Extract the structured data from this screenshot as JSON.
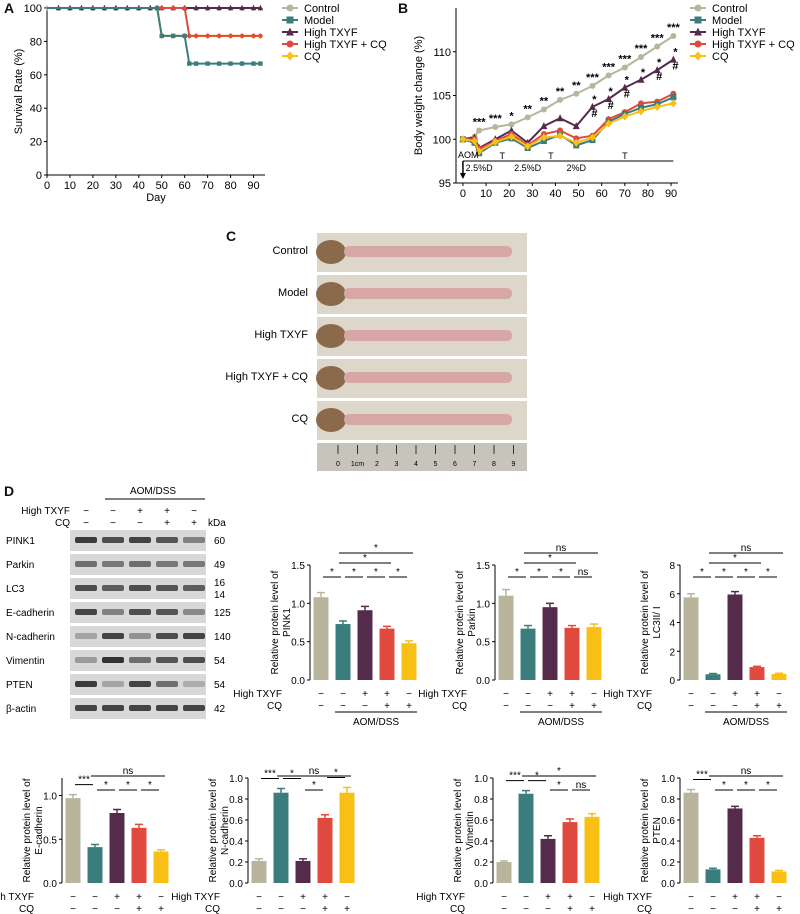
{
  "colors": {
    "control": "#b8b59c",
    "model": "#3b7d7c",
    "high_txyf": "#552b4b",
    "high_txyf_cq": "#e0493d",
    "cq": "#f8bf14",
    "blot_bg": "#d8d8d8",
    "band": "#2a2a2a"
  },
  "series_names": [
    "Control",
    "Model",
    "High TXYF",
    "High TXYF + CQ",
    "CQ"
  ],
  "panel_labels": {
    "a": "A",
    "b": "B",
    "c": "C",
    "d": "D"
  },
  "chart_data": [
    {
      "id": "A",
      "type": "line",
      "title": "",
      "xlabel": "Day",
      "ylabel": "Survival Rate (%)",
      "xlim": [
        0,
        95
      ],
      "ylim": [
        0,
        100
      ],
      "xticks": [
        0,
        10,
        20,
        30,
        40,
        50,
        60,
        70,
        80,
        90
      ],
      "yticks": [
        0,
        20,
        40,
        60,
        80,
        100
      ],
      "series": [
        {
          "name": "Control",
          "x": [
            0,
            5,
            10,
            15,
            20,
            25,
            30,
            35,
            40,
            45,
            48,
            50,
            55,
            60,
            65,
            70,
            75,
            80,
            85,
            90,
            93
          ],
          "y": [
            100,
            100,
            100,
            100,
            100,
            100,
            100,
            100,
            100,
            100,
            100,
            100,
            100,
            100,
            100,
            100,
            100,
            100,
            100,
            100,
            100
          ]
        },
        {
          "name": "High TXYF",
          "x": [
            0,
            5,
            10,
            15,
            20,
            25,
            30,
            35,
            40,
            45,
            48,
            50,
            55,
            60,
            65,
            70,
            75,
            80,
            85,
            90,
            93
          ],
          "y": [
            100,
            100,
            100,
            100,
            100,
            100,
            100,
            100,
            100,
            100,
            100,
            100,
            100,
            100,
            100,
            100,
            100,
            100,
            100,
            100,
            100
          ]
        },
        {
          "name": "CQ",
          "x": [
            0,
            48,
            50,
            55,
            60,
            62,
            65,
            70,
            75,
            80,
            85,
            90,
            93
          ],
          "y": [
            100,
            100,
            83.3,
            83.3,
            83.3,
            83.3,
            83.3,
            83.3,
            83.3,
            83.3,
            83.3,
            83.3,
            83.3
          ]
        },
        {
          "name": "High TXYF + CQ",
          "x": [
            0,
            48,
            50,
            55,
            60,
            62,
            65,
            70,
            75,
            80,
            85,
            90,
            93
          ],
          "y": [
            100,
            100,
            100,
            100,
            100,
            83.3,
            83.3,
            83.3,
            83.3,
            83.3,
            83.3,
            83.3,
            83.3
          ]
        },
        {
          "name": "Model",
          "x": [
            0,
            48,
            50,
            55,
            60,
            62,
            65,
            70,
            75,
            80,
            85,
            90,
            93
          ],
          "y": [
            100,
            100,
            83.3,
            83.3,
            83.3,
            66.7,
            66.7,
            66.7,
            66.7,
            66.7,
            66.7,
            66.7,
            66.7
          ]
        }
      ]
    },
    {
      "id": "B",
      "type": "line",
      "title": "",
      "xlabel": "",
      "ylabel": "Body weight change (%)",
      "xlim": [
        -3,
        93
      ],
      "ylim": [
        95,
        115
      ],
      "xticks": [
        0,
        10,
        20,
        30,
        40,
        50,
        60,
        70,
        80,
        90
      ],
      "yticks": [
        95,
        100,
        105,
        110
      ],
      "x": [
        0,
        5,
        7,
        14,
        21,
        28,
        35,
        42,
        49,
        56,
        63,
        70,
        77,
        84,
        91
      ],
      "series": [
        {
          "name": "Control",
          "y": [
            100,
            100.3,
            101,
            101.4,
            101.7,
            102.5,
            103.4,
            104.5,
            105.2,
            106.1,
            107.3,
            108.2,
            109.4,
            110.6,
            111.8
          ]
        },
        {
          "name": "High TXYF",
          "y": [
            100,
            100.2,
            99,
            100,
            101,
            99.6,
            101.5,
            102.4,
            101.5,
            103.7,
            104.6,
            105.9,
            106.8,
            107.9,
            109.1
          ]
        },
        {
          "name": "High TXYF + CQ",
          "y": [
            100,
            100,
            98.9,
            99.8,
            100.6,
            99.3,
            100.6,
            101,
            100.1,
            100.4,
            102.3,
            103.1,
            104.1,
            104.3,
            105.2
          ]
        },
        {
          "name": "Model",
          "y": [
            100,
            99.6,
            98.4,
            99.6,
            100.1,
            99,
            99.8,
            100.5,
            99.3,
            99.9,
            102,
            102.9,
            103.6,
            104,
            104.8
          ]
        },
        {
          "name": "CQ",
          "y": [
            100,
            99.8,
            98.6,
            99.7,
            100.3,
            99.2,
            100.2,
            100.4,
            99.6,
            100.2,
            101.8,
            102.6,
            103.2,
            103.7,
            104.1
          ]
        }
      ],
      "annotations": [
        {
          "x": 7,
          "text": "***"
        },
        {
          "x": 14,
          "text": "***"
        },
        {
          "x": 21,
          "text": "*"
        },
        {
          "x": 28,
          "text": "**"
        },
        {
          "x": 35,
          "text": "**"
        },
        {
          "x": 42,
          "text": "**"
        },
        {
          "x": 49,
          "text": "**"
        },
        {
          "x": 56,
          "text": "***"
        },
        {
          "x": 63,
          "text": "***"
        },
        {
          "x": 70,
          "text": "***"
        },
        {
          "x": 77,
          "text": "***"
        },
        {
          "x": 84,
          "text": "***"
        },
        {
          "x": 91,
          "text": "***"
        }
      ],
      "hash_annotations": [
        {
          "x": 56,
          "text": "*"
        },
        {
          "x": 63,
          "text": "*"
        },
        {
          "x": 70,
          "text": "*"
        },
        {
          "x": 77,
          "text": "*"
        },
        {
          "x": 84,
          "text": "*"
        },
        {
          "x": 91,
          "text": "*"
        },
        {
          "x": 56,
          "text": "#"
        },
        {
          "x": 63,
          "text": "#"
        },
        {
          "x": 70,
          "text": "#"
        },
        {
          "x": 84,
          "text": "#"
        },
        {
          "x": 91,
          "text": "#"
        }
      ],
      "treatment": {
        "aom": "AOM",
        "labels": [
          {
            "x": 7,
            "text": "2.5%D"
          },
          {
            "x": 28,
            "text": "2.5%D"
          },
          {
            "x": 49,
            "text": "2%D"
          }
        ],
        "t_labels": [
          {
            "x": 17,
            "text": "T"
          },
          {
            "x": 38,
            "text": "T"
          },
          {
            "x": 70,
            "text": "T"
          }
        ]
      }
    },
    {
      "id": "D1",
      "type": "bar",
      "ylabel": "Relative protein level of\nPINK1",
      "ylim": [
        0,
        1.5
      ],
      "yticks": [
        0,
        0.5,
        1.0,
        1.5
      ],
      "categories": [
        "Control",
        "Model",
        "High TXYF",
        "High TXYF + CQ",
        "CQ"
      ],
      "values": [
        1.08,
        0.73,
        0.91,
        0.67,
        0.48
      ],
      "errors": [
        0.06,
        0.04,
        0.05,
        0.03,
        0.03
      ],
      "sig": [
        {
          "a": 0,
          "b": 1,
          "t": "*"
        },
        {
          "a": 1,
          "b": 2,
          "t": "*"
        },
        {
          "a": 2,
          "b": 3,
          "t": "*"
        },
        {
          "a": 3,
          "b": 4,
          "t": "*"
        },
        {
          "a": 1,
          "b": 3,
          "t": "*"
        },
        {
          "a": 1,
          "b": 4,
          "t": "*"
        }
      ]
    },
    {
      "id": "D2",
      "type": "bar",
      "ylabel": "Relative protein level of\nParkin",
      "ylim": [
        0,
        1.5
      ],
      "yticks": [
        0,
        0.5,
        1.0,
        1.5
      ],
      "categories": [
        "Control",
        "Model",
        "High TXYF",
        "High TXYF + CQ",
        "CQ"
      ],
      "values": [
        1.1,
        0.67,
        0.95,
        0.68,
        0.69
      ],
      "errors": [
        0.08,
        0.04,
        0.05,
        0.03,
        0.04
      ],
      "sig": [
        {
          "a": 0,
          "b": 1,
          "t": "*"
        },
        {
          "a": 1,
          "b": 2,
          "t": "*"
        },
        {
          "a": 2,
          "b": 3,
          "t": "*"
        },
        {
          "a": 3,
          "b": 4,
          "t": "ns"
        },
        {
          "a": 1,
          "b": 3,
          "t": "*"
        },
        {
          "a": 1,
          "b": 4,
          "t": "ns"
        }
      ]
    },
    {
      "id": "D3",
      "type": "bar",
      "ylabel": "Relative protein level of\nLC3II/ I",
      "ylim": [
        0,
        8
      ],
      "yticks": [
        0,
        2,
        4,
        6,
        8
      ],
      "categories": [
        "Control",
        "Model",
        "High TXYF",
        "High TXYF + CQ",
        "CQ"
      ],
      "values": [
        5.75,
        0.4,
        5.95,
        0.9,
        0.42
      ],
      "errors": [
        0.25,
        0.05,
        0.2,
        0.05,
        0.05
      ],
      "sig": [
        {
          "a": 0,
          "b": 1,
          "t": "*"
        },
        {
          "a": 1,
          "b": 2,
          "t": "*"
        },
        {
          "a": 2,
          "b": 3,
          "t": "*"
        },
        {
          "a": 3,
          "b": 4,
          "t": "*"
        },
        {
          "a": 1,
          "b": 3,
          "t": "*"
        },
        {
          "a": 1,
          "b": 4,
          "t": "ns"
        }
      ]
    },
    {
      "id": "D4",
      "type": "bar",
      "ylabel": "Relative protein level of\nE-cadherin",
      "ylim": [
        0,
        1.2
      ],
      "yticks": [
        0,
        0.5,
        1.0
      ],
      "categories": [
        "Control",
        "Model",
        "High TXYF",
        "High TXYF + CQ",
        "CQ"
      ],
      "values": [
        0.97,
        0.41,
        0.8,
        0.63,
        0.36
      ],
      "errors": [
        0.04,
        0.03,
        0.04,
        0.04,
        0.02
      ],
      "sig": [
        {
          "a": 0,
          "b": 1,
          "t": "***"
        },
        {
          "a": 1,
          "b": 2,
          "t": "*"
        },
        {
          "a": 2,
          "b": 3,
          "t": "*"
        },
        {
          "a": 3,
          "b": 4,
          "t": "*"
        },
        {
          "a": 1,
          "b": 4,
          "t": "ns"
        }
      ]
    },
    {
      "id": "D5",
      "type": "bar",
      "ylabel": "Relative protein level of\nN-cadherin",
      "ylim": [
        0,
        1.0
      ],
      "yticks": [
        0,
        0.2,
        0.4,
        0.6,
        0.8,
        1.0
      ],
      "categories": [
        "Control",
        "Model",
        "High TXYF",
        "High TXYF + CQ",
        "CQ"
      ],
      "values": [
        0.21,
        0.86,
        0.21,
        0.62,
        0.86
      ],
      "errors": [
        0.02,
        0.04,
        0.02,
        0.03,
        0.05
      ],
      "sig": [
        {
          "a": 0,
          "b": 1,
          "t": "***"
        },
        {
          "a": 1,
          "b": 2,
          "t": "*"
        },
        {
          "a": 2,
          "b": 3,
          "t": "*"
        },
        {
          "a": 3,
          "b": 4,
          "t": "*"
        },
        {
          "a": 1,
          "b": 4,
          "t": "ns"
        }
      ]
    },
    {
      "id": "D6",
      "type": "bar",
      "ylabel": "Relative protein level of\nVimentin",
      "ylim": [
        0,
        1.0
      ],
      "yticks": [
        0,
        0.2,
        0.4,
        0.6,
        0.8,
        1.0
      ],
      "categories": [
        "Control",
        "Model",
        "High TXYF",
        "High TXYF + CQ",
        "CQ"
      ],
      "values": [
        0.2,
        0.85,
        0.42,
        0.58,
        0.63
      ],
      "errors": [
        0.01,
        0.03,
        0.03,
        0.03,
        0.03
      ],
      "sig": [
        {
          "a": 0,
          "b": 1,
          "t": "***"
        },
        {
          "a": 1,
          "b": 2,
          "t": "*"
        },
        {
          "a": 2,
          "b": 3,
          "t": "*"
        },
        {
          "a": 3,
          "b": 4,
          "t": "ns"
        },
        {
          "a": 1,
          "b": 4,
          "t": "*"
        }
      ]
    },
    {
      "id": "D7",
      "type": "bar",
      "ylabel": "Relative protein level of\nPTEN",
      "ylim": [
        0,
        1.0
      ],
      "yticks": [
        0,
        0.2,
        0.4,
        0.6,
        0.8,
        1.0
      ],
      "categories": [
        "Control",
        "Model",
        "High TXYF",
        "High TXYF + CQ",
        "CQ"
      ],
      "values": [
        0.86,
        0.13,
        0.71,
        0.43,
        0.11
      ],
      "errors": [
        0.03,
        0.01,
        0.02,
        0.02,
        0.01
      ],
      "sig": [
        {
          "a": 0,
          "b": 1,
          "t": "***"
        },
        {
          "a": 1,
          "b": 2,
          "t": "*"
        },
        {
          "a": 2,
          "b": 3,
          "t": "*"
        },
        {
          "a": 3,
          "b": 4,
          "t": "*"
        },
        {
          "a": 1,
          "b": 4,
          "t": "ns"
        }
      ]
    }
  ],
  "bar_xaxis": {
    "row1_label": "High TXYF",
    "row2_label": "CQ",
    "row1": [
      "−",
      "−",
      "+",
      "+",
      "−"
    ],
    "row2": [
      "−",
      "−",
      "−",
      "+",
      "+"
    ],
    "group": "AOM/DSS"
  },
  "colon_image": {
    "labels": [
      "Control",
      "Model",
      "High TXYF",
      "High TXYF + CQ",
      "CQ"
    ],
    "ruler_numbers": [
      "0",
      "1cm",
      "2",
      "3",
      "4",
      "5",
      "6",
      "7",
      "8",
      "9"
    ]
  },
  "western_blot": {
    "group": "AOM/DSS",
    "row1_label": "High TXYF",
    "row2_label": "CQ",
    "kda_label": "kDa",
    "row1": [
      "−",
      "−",
      "+",
      "+",
      "−"
    ],
    "row2": [
      "−",
      "−",
      "−",
      "+",
      "+"
    ],
    "proteins": [
      {
        "name": "PINK1",
        "kda": "60",
        "int": [
          0.9,
          0.8,
          0.85,
          0.75,
          0.5
        ]
      },
      {
        "name": "Parkin",
        "kda": "49",
        "int": [
          0.6,
          0.55,
          0.6,
          0.55,
          0.55
        ]
      },
      {
        "name": "LC3",
        "kda": "16\n14",
        "int": [
          0.8,
          0.7,
          0.8,
          0.75,
          0.7
        ]
      },
      {
        "name": "E-cadherin",
        "kda": "125",
        "int": [
          0.85,
          0.5,
          0.8,
          0.75,
          0.45
        ]
      },
      {
        "name": "N-cadherin",
        "kda": "140",
        "int": [
          0.3,
          0.85,
          0.4,
          0.8,
          0.85
        ]
      },
      {
        "name": "Vimentin",
        "kda": "54",
        "int": [
          0.35,
          0.95,
          0.6,
          0.75,
          0.8
        ]
      },
      {
        "name": "PTEN",
        "kda": "54",
        "int": [
          0.9,
          0.3,
          0.85,
          0.6,
          0.25
        ]
      },
      {
        "name": "β-actin",
        "kda": "42",
        "int": [
          0.85,
          0.85,
          0.85,
          0.85,
          0.85
        ]
      }
    ]
  }
}
